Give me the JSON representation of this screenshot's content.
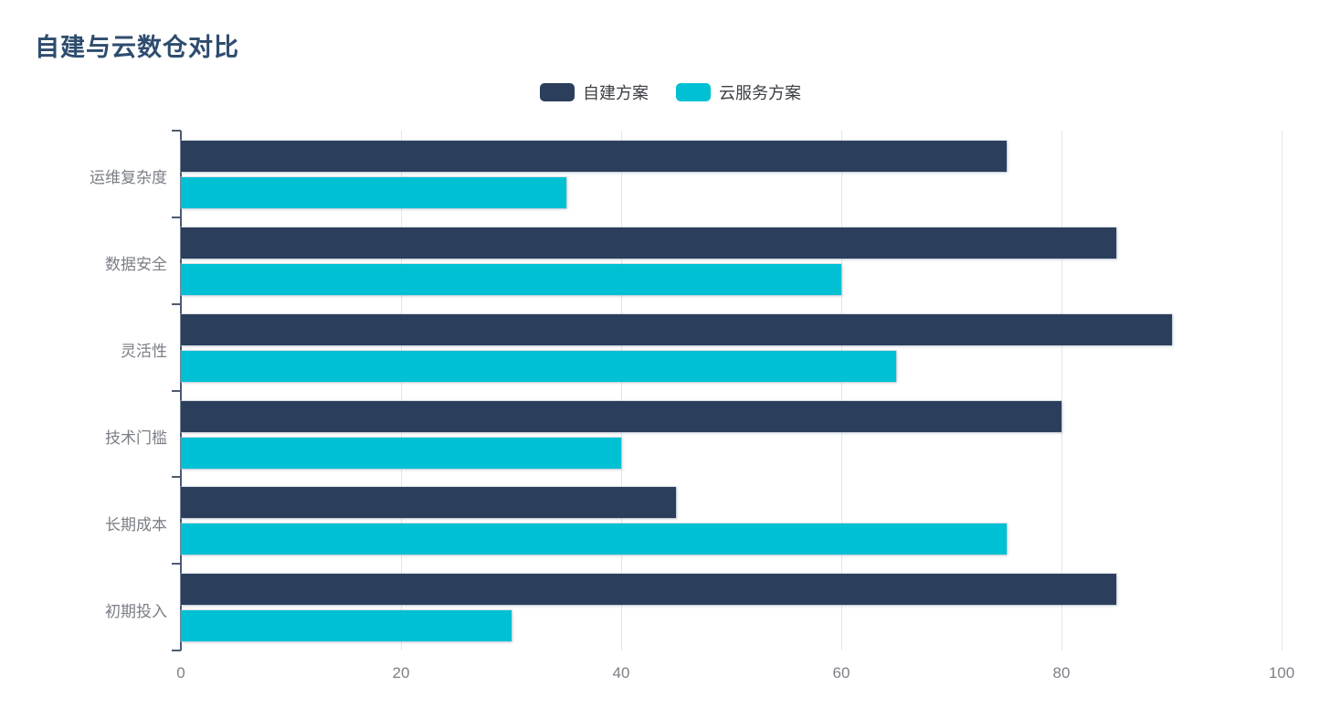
{
  "title": "自建与云数仓对比",
  "colors": {
    "self_built": "#2b3f5c",
    "cloud": "#00c0d4",
    "title_text": "#2e4c6e",
    "axis_label": "#7b7e86",
    "legend_text": "#3a3e44",
    "grid_line": "#e0e6f2",
    "axis_line": "#4b5b72"
  },
  "legend": {
    "items": [
      {
        "label": "自建方案",
        "color": "#2b3f5c"
      },
      {
        "label": "云服务方案",
        "color": "#00c0d4"
      }
    ]
  },
  "chart_data": {
    "type": "bar",
    "orientation": "horizontal",
    "title": "自建与云数仓对比",
    "categories": [
      "运维复杂度",
      "数据安全",
      "灵活性",
      "技术门槛",
      "长期成本",
      "初期投入"
    ],
    "series": [
      {
        "name": "自建方案",
        "color": "#2b3f5c",
        "values": [
          75,
          85,
          90,
          80,
          45,
          85
        ]
      },
      {
        "name": "云服务方案",
        "color": "#00c0d4",
        "values": [
          35,
          60,
          65,
          40,
          75,
          30
        ]
      }
    ],
    "xlabel": "",
    "ylabel": "",
    "xlim": [
      0,
      100
    ],
    "x_ticks": [
      0,
      20,
      40,
      60,
      80,
      100
    ],
    "grid": true,
    "legend_position": "top-center"
  }
}
